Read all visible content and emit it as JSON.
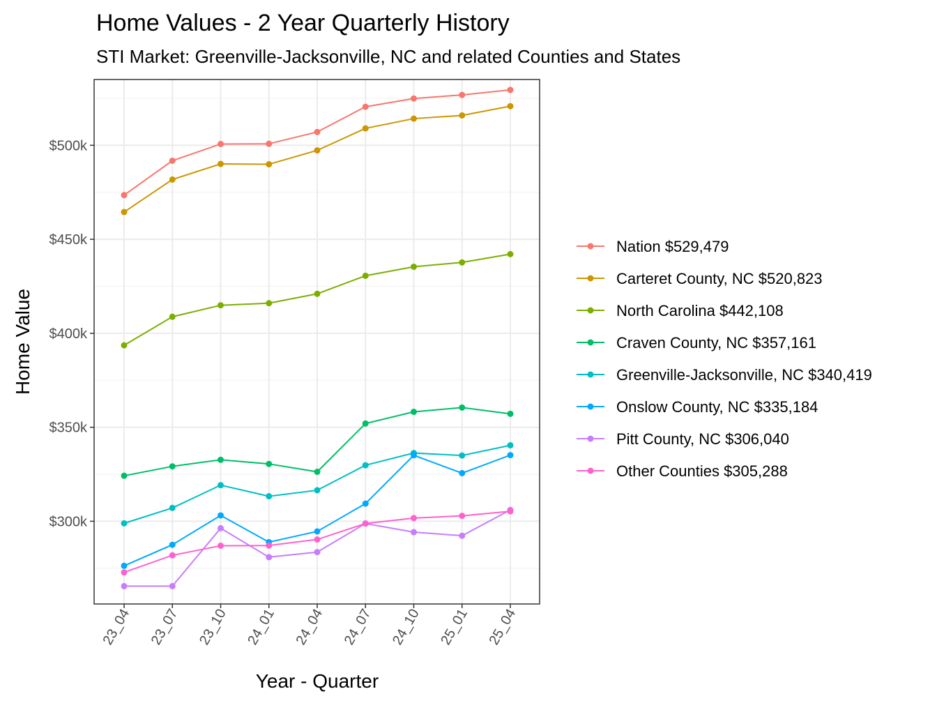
{
  "chart_data": {
    "type": "line",
    "title": "Home Values - 2 Year Quarterly History",
    "subtitle": "STI Market: Greenville-Jacksonville, NC and related Counties and States",
    "xlabel": "Year - Quarter",
    "ylabel": "Home Value",
    "categories": [
      "23_04",
      "23_07",
      "23_10",
      "24_01",
      "24_04",
      "24_07",
      "24_10",
      "25_01",
      "25_04"
    ],
    "ylim": [
      256000,
      535000
    ],
    "yticks": [
      300000,
      350000,
      400000,
      450000,
      500000
    ],
    "ytick_labels": [
      "$300k",
      "$350k",
      "$400k",
      "$450k",
      "$500k"
    ],
    "grid": true,
    "legend_position": "right",
    "series": [
      {
        "name": "Nation $529,479",
        "color": "#F8766D",
        "values": [
          473500,
          491800,
          500700,
          500800,
          507100,
          520500,
          524900,
          526800,
          529479
        ]
      },
      {
        "name": "Carteret County, NC $520,823",
        "color": "#CD9600",
        "values": [
          464500,
          481800,
          490100,
          489900,
          497300,
          509000,
          514200,
          515900,
          520823
        ]
      },
      {
        "name": "North Carolina $442,108",
        "color": "#7CAE00",
        "values": [
          393600,
          408800,
          414900,
          416000,
          421000,
          430600,
          435400,
          437700,
          442108
        ]
      },
      {
        "name": "Craven County, NC $357,161",
        "color": "#00BE67",
        "values": [
          324200,
          329200,
          332700,
          330500,
          326300,
          352000,
          358200,
          360500,
          357161
        ]
      },
      {
        "name": "Greenville-Jacksonville, NC $340,419",
        "color": "#00BFC4",
        "values": [
          298900,
          307100,
          319200,
          313300,
          316500,
          329800,
          336300,
          335000,
          340419
        ]
      },
      {
        "name": "Onslow County, NC $335,184",
        "color": "#00A9FF",
        "values": [
          276300,
          287500,
          303100,
          288900,
          294600,
          309400,
          335100,
          325600,
          335184
        ]
      },
      {
        "name": "Pitt County, NC $306,040",
        "color": "#C77CFF",
        "values": [
          265500,
          265500,
          296300,
          280900,
          283600,
          298800,
          294200,
          292300,
          306040
        ]
      },
      {
        "name": "Other Counties $305,288",
        "color": "#FF61CC",
        "values": [
          272800,
          281900,
          287000,
          287100,
          290300,
          298800,
          301700,
          302900,
          305288
        ]
      }
    ]
  }
}
